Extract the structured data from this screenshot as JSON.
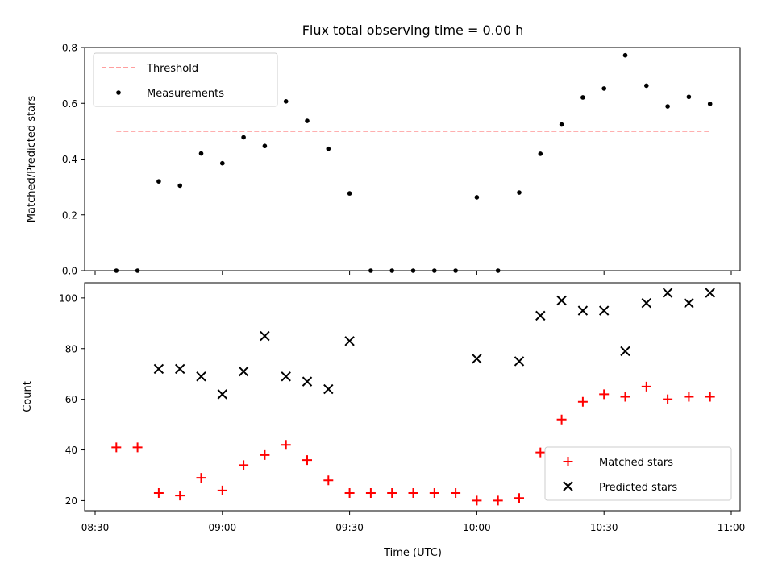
{
  "chart_data": {
    "title": "Flux total observing time = 0.00 h",
    "xlabel": "Time (UTC)",
    "x_ticks": [
      "08:30",
      "09:00",
      "09:30",
      "10:00",
      "10:30",
      "11:00"
    ],
    "x": [
      "08:35",
      "08:40",
      "08:45",
      "08:50",
      "08:55",
      "09:00",
      "09:05",
      "09:10",
      "09:15",
      "09:20",
      "09:25",
      "09:30",
      "09:35",
      "09:40",
      "09:45",
      "09:50",
      "09:55",
      "10:00",
      "10:05",
      "10:10",
      "10:15",
      "10:20",
      "10:25",
      "10:30",
      "10:35",
      "10:40",
      "10:45",
      "10:50",
      "10:55"
    ],
    "panels": [
      {
        "type": "scatter",
        "ylabel": "Matched/Predicted stars",
        "ylim": [
          0,
          0.8
        ],
        "y_ticks": [
          "0.0",
          "0.2",
          "0.4",
          "0.6",
          "0.8"
        ],
        "legend_position": "top-left",
        "threshold": {
          "name": "Threshold",
          "value": 0.5,
          "color": "#ff7f7f"
        },
        "series": [
          {
            "name": "Measurements",
            "color": "#000000",
            "marker": "dot",
            "values": [
              0,
              0,
              0.32,
              0.305,
              0.42,
              0.385,
              0.478,
              0.447,
              0.607,
              0.537,
              0.437,
              0.277,
              0,
              0,
              0,
              0,
              0,
              0.263,
              0,
              0.28,
              0.419,
              0.524,
              0.621,
              0.653,
              0.772,
              0.663,
              0.589,
              0.623,
              0.598
            ]
          }
        ]
      },
      {
        "type": "scatter",
        "ylabel": "Count",
        "ylim": [
          16,
          106
        ],
        "y_ticks": [
          "20",
          "40",
          "60",
          "80",
          "100"
        ],
        "legend_position": "bottom-right",
        "series": [
          {
            "name": "Matched stars",
            "color": "#ff0000",
            "marker": "plus",
            "values": [
              41,
              41,
              23,
              22,
              29,
              24,
              34,
              38,
              42,
              36,
              28,
              23,
              23,
              23,
              23,
              23,
              23,
              20,
              20,
              21,
              39,
              52,
              59,
              62,
              61,
              65,
              60,
              61,
              61
            ]
          },
          {
            "name": "Predicted stars",
            "color": "#000000",
            "marker": "x",
            "values": [
              null,
              null,
              72,
              72,
              69,
              62,
              71,
              85,
              69,
              67,
              64,
              83,
              null,
              null,
              null,
              null,
              null,
              76,
              null,
              75,
              93,
              99,
              95,
              95,
              79,
              98,
              102,
              98,
              102
            ]
          }
        ]
      }
    ]
  }
}
